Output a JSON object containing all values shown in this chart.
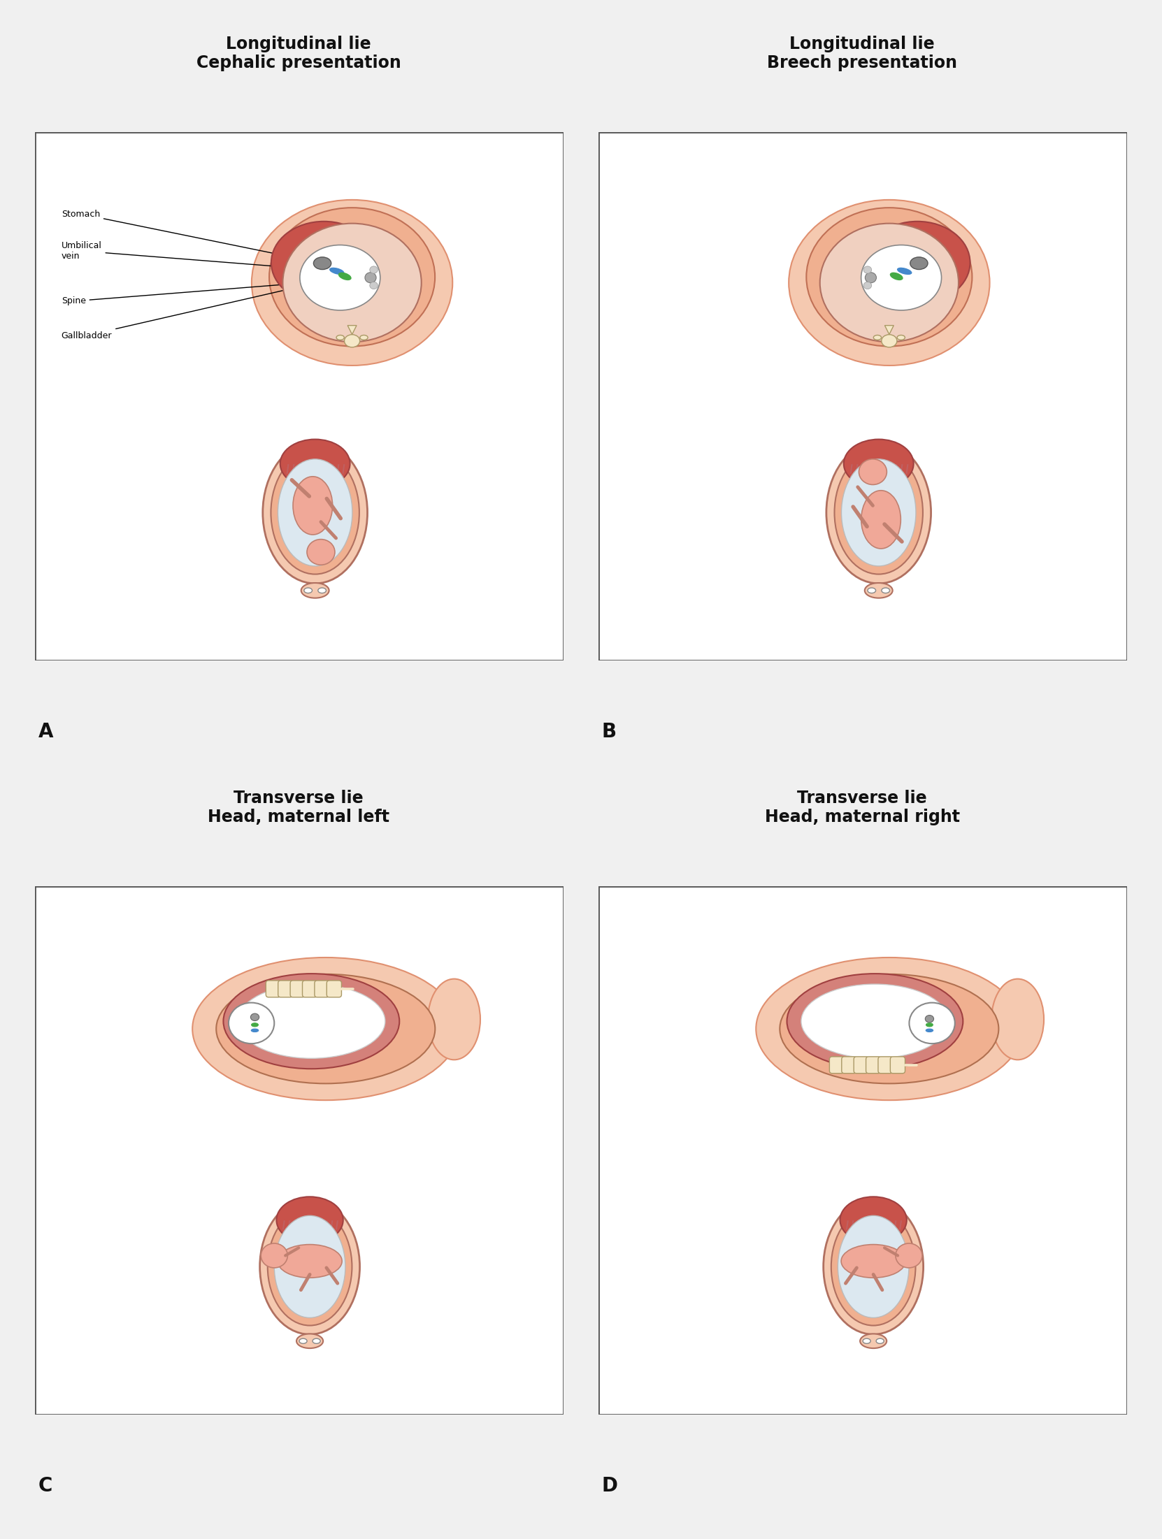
{
  "bg_color": "#f0f0f0",
  "panel_bg": "#ffffff",
  "skin_light": "#f5c9b0",
  "skin_mid": "#f0b090",
  "skin_dark": "#e09070",
  "myometrium": "#d4817a",
  "placenta_dark": "#c8524a",
  "placenta_frond": "#c06060",
  "amniotic": "#dce8f0",
  "fetus_skin": "#f0a898",
  "vertebra_color": "#f5e8c8",
  "vertebra_edge": "#aa9966",
  "stomach_color": "#888888",
  "umbvein_color": "#4488cc",
  "gallbladder_color": "#44aa44",
  "spine_dot": "#aaaaaa",
  "border_color": "#555555",
  "text_color": "#111111",
  "titles": [
    "Longitudinal lie\nCephalic presentation",
    "Longitudinal lie\nBreech presentation",
    "Transverse lie\nHead, maternal left",
    "Transverse lie\nHead, maternal right"
  ],
  "panel_labels": [
    "A",
    "B",
    "C",
    "D"
  ]
}
